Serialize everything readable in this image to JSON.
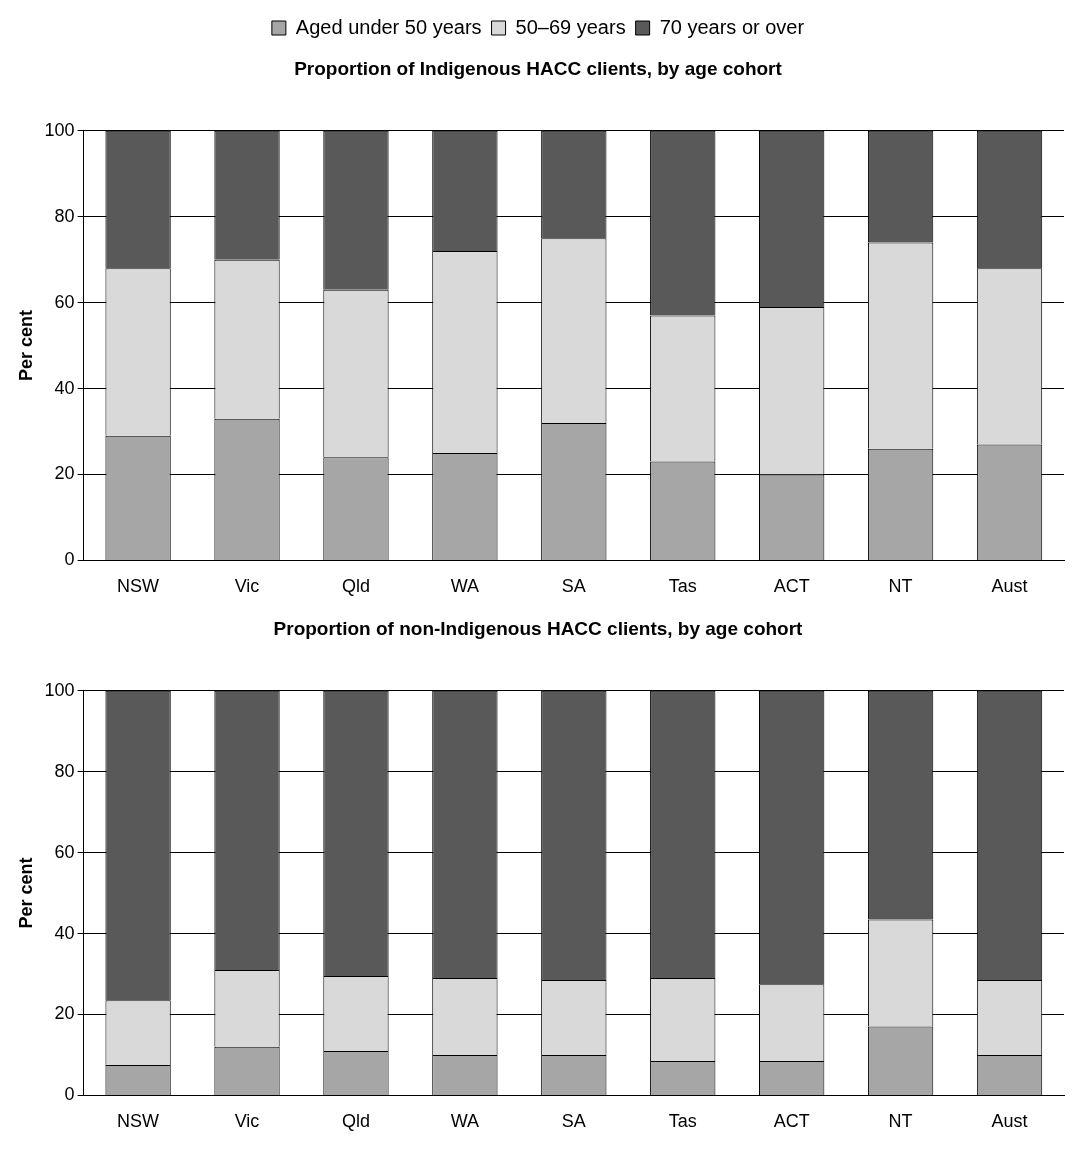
{
  "chart_data": [
    {
      "type": "bar",
      "stacked": true,
      "title": "Proportion of Indigenous HACC clients, by age cohort",
      "ylabel": "Per cent",
      "categories": [
        "NSW",
        "Vic",
        "Qld",
        "WA",
        "SA",
        "Tas",
        "ACT",
        "NT",
        "Aust"
      ],
      "ylim": [
        0,
        100
      ],
      "yticks": [
        0,
        20,
        40,
        60,
        80,
        100
      ],
      "grid": "y",
      "legend": "top",
      "series": [
        {
          "name": "Aged under 50 years",
          "color": "#a6a6a6",
          "values": [
            29,
            33,
            24,
            25,
            32,
            23,
            20,
            26,
            27
          ]
        },
        {
          "name": "50–69 years",
          "color": "#d9d9d9",
          "values": [
            39,
            37,
            39,
            47,
            43,
            34,
            39,
            48,
            41
          ]
        },
        {
          "name": "70 years or over",
          "color": "#595959",
          "values": [
            32,
            30,
            37,
            28,
            25,
            43,
            41,
            26,
            32
          ]
        }
      ]
    },
    {
      "type": "bar",
      "stacked": true,
      "title": "Proportion of non-Indigenous HACC clients, by age cohort",
      "ylabel": "Per cent",
      "categories": [
        "NSW",
        "Vic",
        "Qld",
        "WA",
        "SA",
        "Tas",
        "ACT",
        "NT",
        "Aust"
      ],
      "ylim": [
        0,
        100
      ],
      "yticks": [
        0,
        20,
        40,
        60,
        80,
        100
      ],
      "grid": "y",
      "series": [
        {
          "color": "#a6a6a6",
          "values": [
            7.5,
            12,
            11,
            10,
            10,
            8.5,
            8.5,
            17,
            10
          ]
        },
        {
          "color": "#d9d9d9",
          "values": [
            16,
            19,
            18.5,
            19,
            18.5,
            20.5,
            19,
            26.5,
            18.5
          ]
        },
        {
          "color": "#595959",
          "values": [
            76.5,
            69,
            70.5,
            71,
            71.5,
            71,
            72.5,
            56.5,
            71.5
          ]
        }
      ]
    }
  ]
}
